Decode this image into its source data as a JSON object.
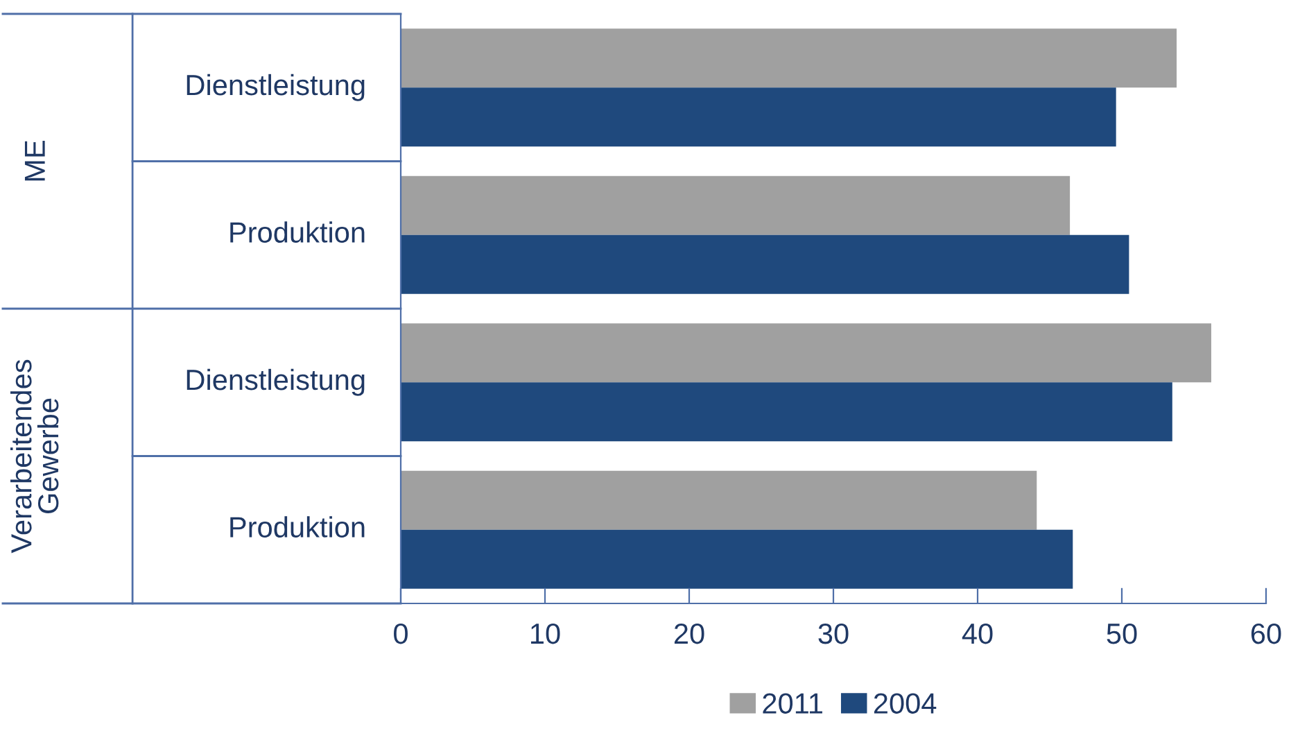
{
  "chart_data": {
    "type": "bar",
    "orientation": "horizontal",
    "categories": [
      "Dienstleistung",
      "Produktion",
      "Dienstleistung",
      "Produktion"
    ],
    "annotations": [
      "ME",
      "Verarbeitendes\nGewerbe"
    ],
    "series": [
      {
        "name": "2011",
        "color": "#a0a0a0",
        "values": [
          53.8,
          46.4,
          56.2,
          44.1
        ]
      },
      {
        "name": "2004",
        "color": "#1f497d",
        "values": [
          49.6,
          50.5,
          53.5,
          46.6
        ]
      }
    ],
    "xlim": [
      0,
      60
    ],
    "xticks": [
      0,
      10,
      20,
      30,
      40,
      50,
      60
    ],
    "grid": false,
    "legend": "bottom"
  }
}
